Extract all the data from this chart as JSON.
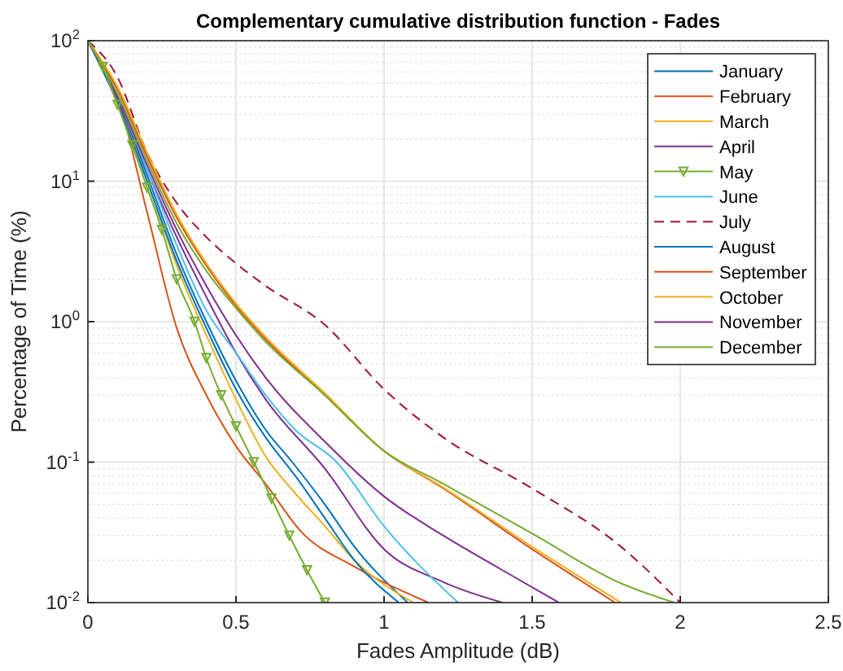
{
  "chart_data": {
    "type": "line",
    "title": "Complementary cumulative distribution function - Fades",
    "xlabel": "Fades Amplitude (dB)",
    "ylabel": "Percentage of Time (%)",
    "log": "y",
    "grid": true,
    "legend": "top right",
    "line_style": "solid",
    "xlim": [
      0,
      2.5
    ],
    "xticks": [
      0,
      0.5,
      1,
      1.5,
      2,
      2.5
    ],
    "ylim": [
      0.01,
      100
    ],
    "yticks": [
      {
        "value": 0.01,
        "label": "10$^{-2}$"
      },
      {
        "value": 0.1,
        "label": "10$^{-1}$"
      },
      {
        "value": 1,
        "label": "10$^{0}$"
      },
      {
        "value": 10,
        "label": "10$^{1}$"
      },
      {
        "value": 100,
        "label": "10$^{2}$"
      }
    ],
    "series": [
      {
        "name": "January",
        "color": "#0072bd",
        "x": [
          0,
          0.1,
          0.2,
          0.3,
          0.4,
          0.5,
          0.6,
          0.69,
          0.8,
          0.9,
          1.08
        ],
        "values": [
          100,
          38,
          11,
          3,
          1,
          0.38,
          0.17,
          0.1,
          0.05,
          0.025,
          0.01
        ]
      },
      {
        "name": "February",
        "color": "#d95319",
        "x": [
          0,
          0.1,
          0.2,
          0.3,
          0.4,
          0.5,
          0.6,
          0.72,
          0.9,
          1.15
        ],
        "values": [
          100,
          40,
          6,
          0.9,
          0.3,
          0.13,
          0.07,
          0.032,
          0.018,
          0.01
        ]
      },
      {
        "name": "March",
        "color": "#edb120",
        "x": [
          0,
          0.1,
          0.2,
          0.3,
          0.4,
          0.5,
          0.6,
          0.7,
          0.8,
          0.9,
          1.1
        ],
        "values": [
          100,
          37,
          10,
          2.5,
          0.8,
          0.28,
          0.11,
          0.06,
          0.035,
          0.02,
          0.01
        ]
      },
      {
        "name": "April",
        "color": "#7e2f8e",
        "x": [
          0,
          0.1,
          0.2,
          0.3,
          0.4,
          0.5,
          0.6,
          0.8,
          1.0,
          1.2,
          1.4
        ],
        "values": [
          100,
          38,
          12,
          4,
          1.5,
          0.6,
          0.28,
          0.09,
          0.024,
          0.014,
          0.01
        ]
      },
      {
        "name": "May",
        "color": "#77ac30",
        "marker": "triangle",
        "x": [
          0,
          0.05,
          0.1,
          0.15,
          0.2,
          0.25,
          0.3,
          0.36,
          0.4,
          0.45,
          0.5,
          0.56,
          0.62,
          0.68,
          0.74,
          0.8
        ],
        "values": [
          100,
          65,
          35,
          18,
          9,
          4.5,
          2,
          1,
          0.55,
          0.3,
          0.18,
          0.1,
          0.055,
          0.03,
          0.017,
          0.01
        ]
      },
      {
        "name": "June",
        "color": "#4dbeee",
        "x": [
          0,
          0.1,
          0.2,
          0.3,
          0.4,
          0.5,
          0.6,
          0.7,
          0.84,
          1.0,
          1.25
        ],
        "values": [
          100,
          40,
          12,
          3.5,
          1.2,
          0.6,
          0.3,
          0.17,
          0.1,
          0.035,
          0.01
        ]
      },
      {
        "name": "July",
        "color": "#a2142f",
        "line_style": "dashed",
        "x": [
          0,
          0.1,
          0.2,
          0.3,
          0.4,
          0.5,
          0.6,
          0.8,
          1.0,
          1.2,
          1.5,
          1.8,
          2.0
        ],
        "values": [
          100,
          55,
          16,
          7,
          4,
          2.6,
          1.8,
          0.95,
          0.33,
          0.15,
          0.065,
          0.025,
          0.01
        ]
      },
      {
        "name": "August",
        "color": "#0072bd",
        "x": [
          0,
          0.1,
          0.2,
          0.3,
          0.4,
          0.5,
          0.6,
          0.7,
          0.8,
          0.9,
          1.05
        ],
        "values": [
          100,
          36,
          10,
          2.7,
          0.9,
          0.33,
          0.15,
          0.08,
          0.04,
          0.02,
          0.01
        ]
      },
      {
        "name": "September",
        "color": "#d95319",
        "x": [
          0,
          0.1,
          0.2,
          0.3,
          0.4,
          0.5,
          0.6,
          0.8,
          1.0,
          1.2,
          1.5,
          1.78
        ],
        "values": [
          100,
          45,
          15,
          5.5,
          2.5,
          1.3,
          0.75,
          0.3,
          0.12,
          0.065,
          0.024,
          0.01
        ]
      },
      {
        "name": "October",
        "color": "#edb120",
        "x": [
          0,
          0.1,
          0.2,
          0.3,
          0.4,
          0.5,
          0.6,
          0.8,
          1.0,
          1.2,
          1.5,
          1.8
        ],
        "values": [
          100,
          47,
          16,
          5.8,
          2.6,
          1.35,
          0.78,
          0.31,
          0.12,
          0.066,
          0.025,
          0.01
        ]
      },
      {
        "name": "November",
        "color": "#7e2f8e",
        "x": [
          0,
          0.1,
          0.2,
          0.3,
          0.4,
          0.5,
          0.6,
          0.8,
          1.0,
          1.2,
          1.4,
          1.59
        ],
        "values": [
          100,
          40,
          13,
          4.5,
          1.8,
          0.8,
          0.4,
          0.14,
          0.057,
          0.03,
          0.017,
          0.01
        ]
      },
      {
        "name": "December",
        "color": "#77ac30",
        "x": [
          0,
          0.1,
          0.2,
          0.3,
          0.4,
          0.5,
          0.6,
          0.8,
          1.0,
          1.2,
          1.5,
          1.79,
          1.98
        ],
        "values": [
          100,
          42,
          14,
          5,
          2.3,
          1.25,
          0.72,
          0.3,
          0.12,
          0.07,
          0.031,
          0.014,
          0.01
        ]
      }
    ]
  }
}
